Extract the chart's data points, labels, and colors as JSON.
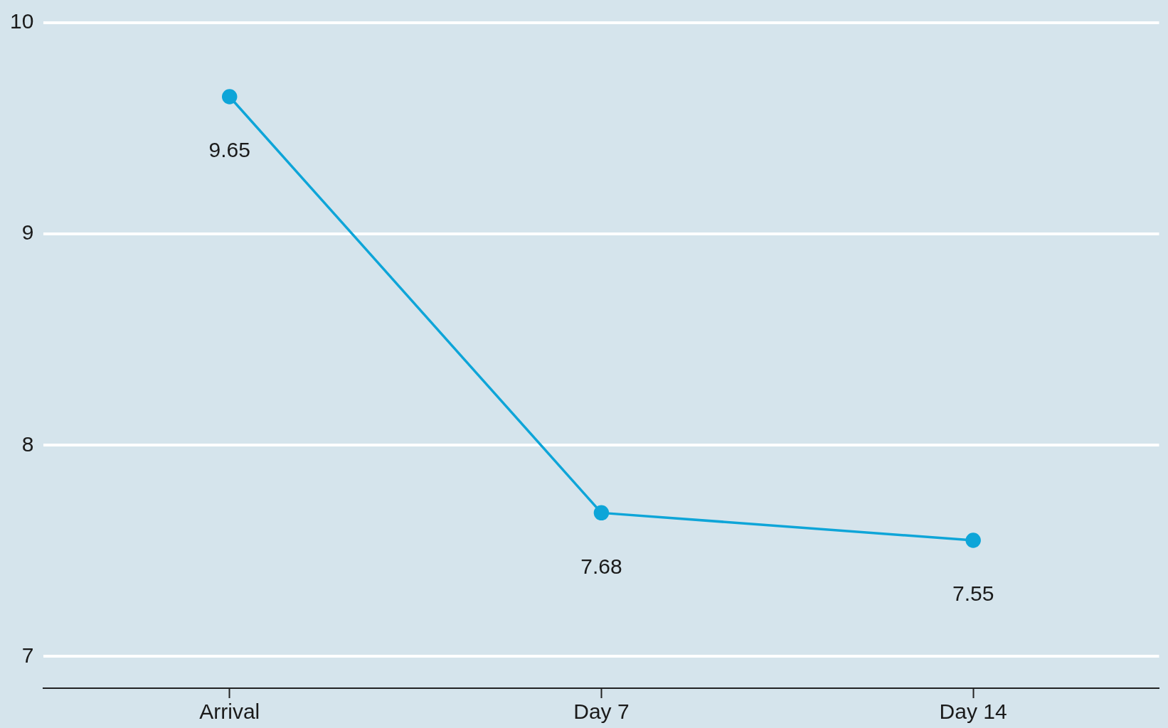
{
  "chart_data": {
    "type": "line",
    "categories": [
      "Arrival",
      "Day 7",
      "Day 14"
    ],
    "series": [
      {
        "color": "#0ea5d8",
        "values": [
          9.65,
          7.68,
          7.55
        ]
      }
    ],
    "ylim": [
      6.85,
      10
    ],
    "yticks": [
      7,
      8,
      9,
      10
    ],
    "grid": "y",
    "marker": "circle",
    "line_style": "solid",
    "data_labels": true,
    "legend": false
  }
}
